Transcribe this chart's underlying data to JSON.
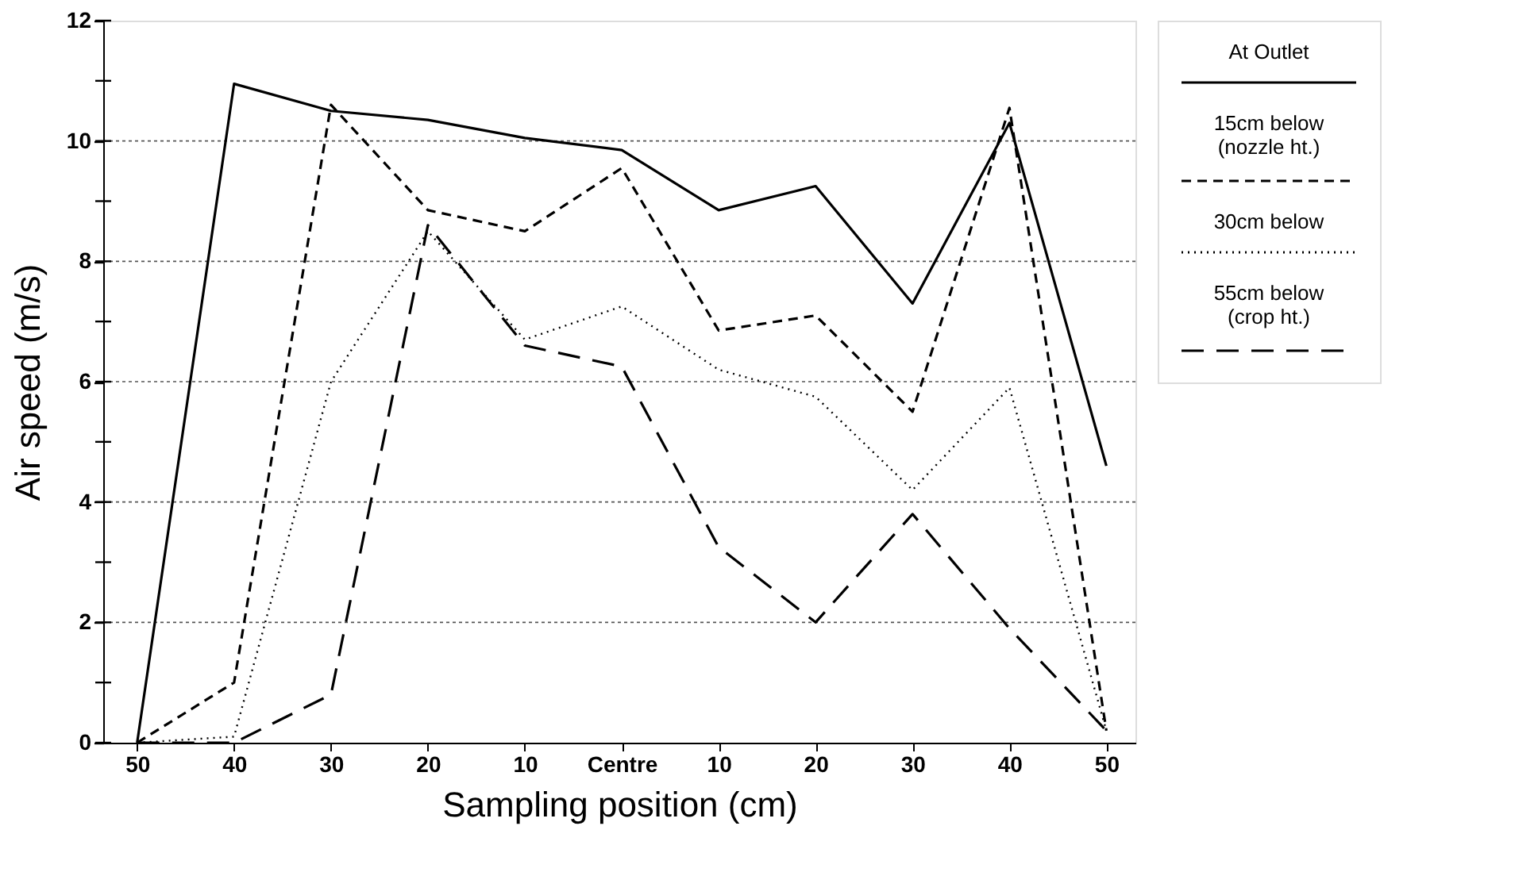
{
  "chart_data": {
    "type": "line",
    "xlabel": "Sampling position (cm)",
    "ylabel": "Air speed (m/s)",
    "categories": [
      "50",
      "40",
      "30",
      "20",
      "10",
      "Centre",
      "10",
      "20",
      "30",
      "40",
      "50"
    ],
    "series": [
      {
        "name": "At Outlet",
        "color": "#000000",
        "line_style": "solid",
        "values": [
          0,
          10.95,
          10.5,
          10.35,
          10.05,
          9.85,
          8.85,
          9.25,
          7.3,
          10.3,
          4.6
        ]
      },
      {
        "name": "15cm below\n(nozzle ht.)",
        "color": "#000000",
        "line_style": "dashed",
        "values": [
          0,
          1.0,
          10.6,
          8.85,
          8.5,
          9.55,
          6.85,
          7.1,
          5.5,
          10.55,
          0.2
        ]
      },
      {
        "name": "30cm below",
        "color": "#000000",
        "line_style": "dotted",
        "values": [
          0,
          0.1,
          6.0,
          8.5,
          6.7,
          7.25,
          6.2,
          5.75,
          4.2,
          5.9,
          0.2
        ]
      },
      {
        "name": "55cm below\n(crop ht.)",
        "color": "#000000",
        "line_style": "dashed",
        "values": [
          0,
          0,
          0.8,
          8.6,
          6.6,
          6.25,
          3.25,
          2.0,
          3.8,
          1.9,
          0.2
        ]
      }
    ],
    "ylim": [
      0,
      12
    ],
    "yticks": [
      0,
      {
        "value": 1,
        "label": null
      },
      2,
      {
        "value": 3,
        "label": null
      },
      4,
      {
        "value": 5,
        "label": null
      },
      6,
      {
        "value": 7,
        "label": null
      },
      8,
      {
        "value": 9,
        "label": null
      },
      10,
      {
        "value": 11,
        "label": null
      },
      12
    ],
    "grid": "y",
    "legend": "right",
    "marker": "none"
  }
}
